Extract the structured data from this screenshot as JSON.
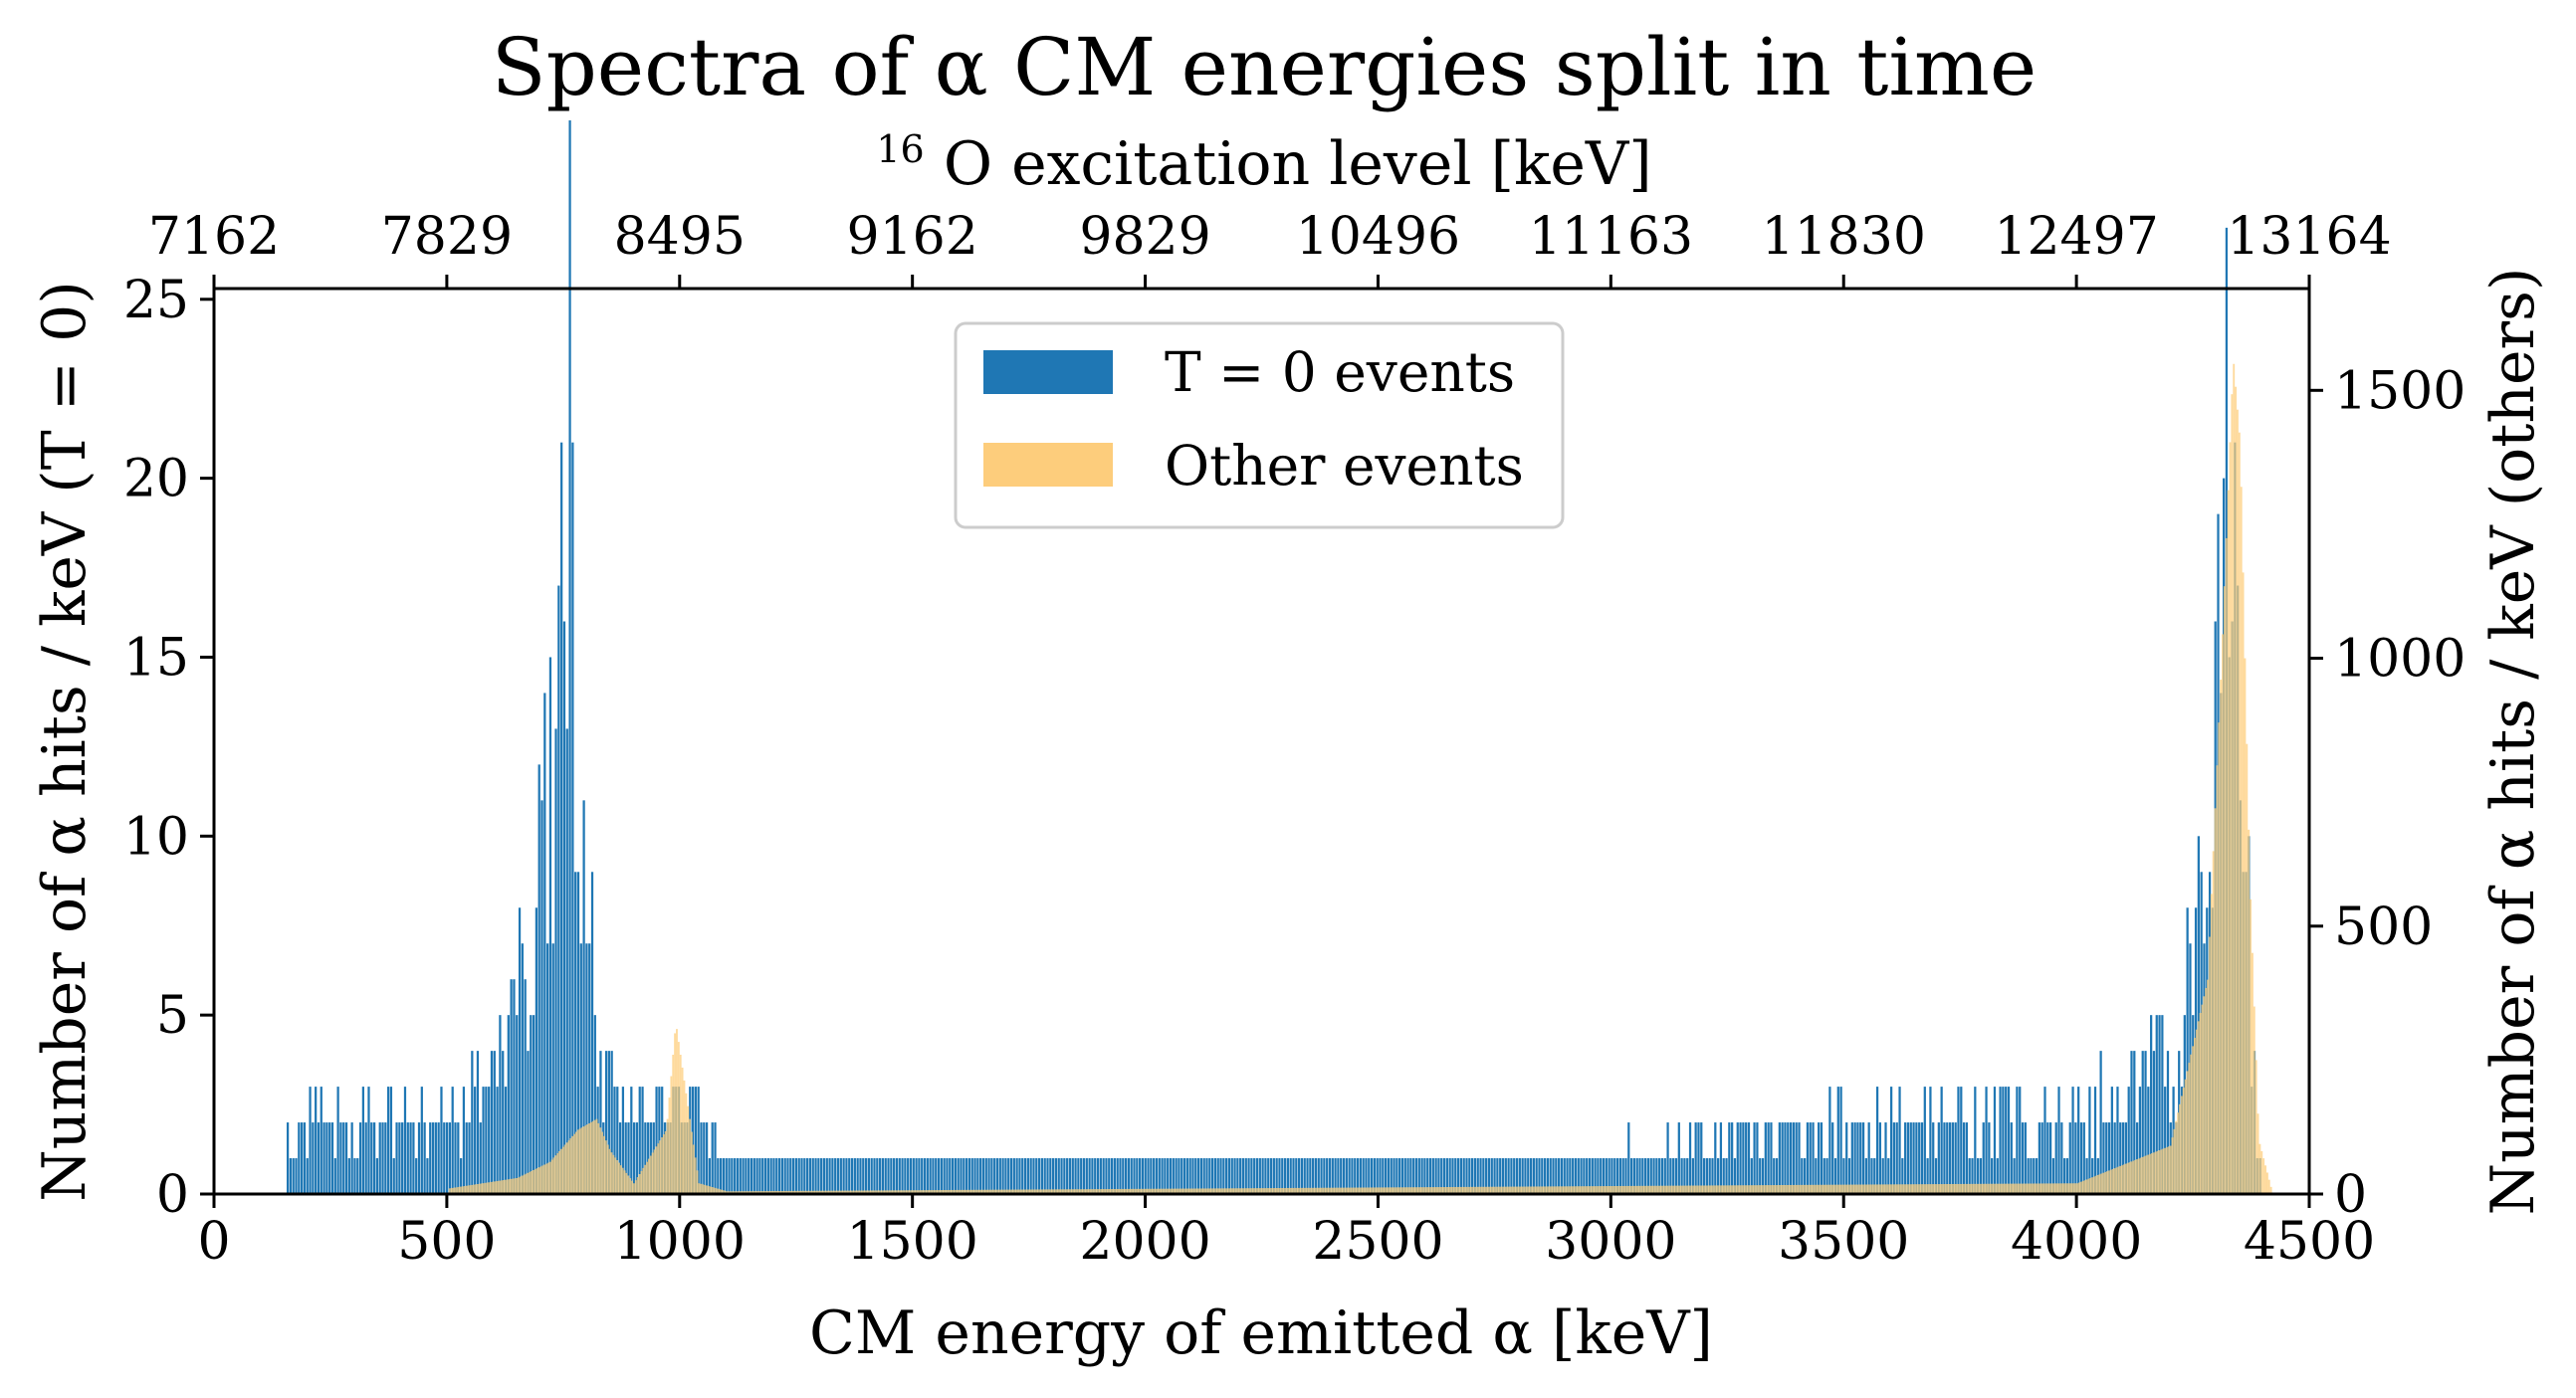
{
  "chart_data": {
    "type": "bar",
    "title": "Spectra of α CM energies split in time",
    "xlabel": "CM energy of emitted α [keV]",
    "ylabel_left": "Number of α hits / keV (T = 0)",
    "ylabel_right": "Number of α hits / keV (others)",
    "top_axis_label_sup": "16",
    "top_axis_label": "O excitation level [keV]",
    "xlim": [
      0,
      4500
    ],
    "ylim_left": [
      0,
      25.3
    ],
    "ylim_right": [
      0,
      1690
    ],
    "xticks": [
      "0",
      "500",
      "1000",
      "1500",
      "2000",
      "2500",
      "3000",
      "3500",
      "4000",
      "4500"
    ],
    "yticks_left": [
      "0",
      "5",
      "10",
      "15",
      "20",
      "25"
    ],
    "yticks_right": [
      "0",
      "500",
      "1000",
      "1500"
    ],
    "top_ticks": [
      "7162",
      "7829",
      "8495",
      "9162",
      "9829",
      "10496",
      "11163",
      "11830",
      "12497",
      "13164"
    ],
    "legend_position": "upper-center",
    "series": [
      {
        "name": "T = 0 events",
        "color": "#1f77b4",
        "axis": "left",
        "peaks": [
          {
            "x": 150,
            "y": 1
          },
          {
            "x": 200,
            "y": 2
          },
          {
            "x": 300,
            "y": 2
          },
          {
            "x": 400,
            "y": 2
          },
          {
            "x": 500,
            "y": 2
          },
          {
            "x": 600,
            "y": 3
          },
          {
            "x": 650,
            "y": 5
          },
          {
            "x": 700,
            "y": 8
          },
          {
            "x": 730,
            "y": 13
          },
          {
            "x": 750,
            "y": 17
          },
          {
            "x": 760,
            "y": 21
          },
          {
            "x": 780,
            "y": 15
          },
          {
            "x": 800,
            "y": 10
          },
          {
            "x": 830,
            "y": 4
          },
          {
            "x": 900,
            "y": 2
          },
          {
            "x": 1000,
            "y": 3
          },
          {
            "x": 1100,
            "y": 1
          },
          {
            "x": 1500,
            "y": 1
          },
          {
            "x": 2000,
            "y": 1
          },
          {
            "x": 2500,
            "y": 1
          },
          {
            "x": 3000,
            "y": 1
          },
          {
            "x": 3500,
            "y": 2
          },
          {
            "x": 4000,
            "y": 2
          },
          {
            "x": 4200,
            "y": 4
          },
          {
            "x": 4280,
            "y": 8
          },
          {
            "x": 4320,
            "y": 18
          },
          {
            "x": 4340,
            "y": 21
          },
          {
            "x": 4360,
            "y": 12
          },
          {
            "x": 4380,
            "y": 3
          },
          {
            "x": 4400,
            "y": 0
          }
        ]
      },
      {
        "name": "Other events",
        "color": "#fdcd7c",
        "axis": "right",
        "peaks": [
          {
            "x": 500,
            "y": 10
          },
          {
            "x": 650,
            "y": 30
          },
          {
            "x": 720,
            "y": 60
          },
          {
            "x": 780,
            "y": 120
          },
          {
            "x": 820,
            "y": 140
          },
          {
            "x": 850,
            "y": 80
          },
          {
            "x": 900,
            "y": 20
          },
          {
            "x": 970,
            "y": 120
          },
          {
            "x": 990,
            "y": 320
          },
          {
            "x": 1010,
            "y": 200
          },
          {
            "x": 1040,
            "y": 20
          },
          {
            "x": 1100,
            "y": 5
          },
          {
            "x": 4000,
            "y": 20
          },
          {
            "x": 4200,
            "y": 90
          },
          {
            "x": 4280,
            "y": 400
          },
          {
            "x": 4310,
            "y": 1000
          },
          {
            "x": 4335,
            "y": 1560
          },
          {
            "x": 4350,
            "y": 1400
          },
          {
            "x": 4370,
            "y": 600
          },
          {
            "x": 4390,
            "y": 100
          },
          {
            "x": 4420,
            "y": 0
          }
        ]
      }
    ]
  }
}
